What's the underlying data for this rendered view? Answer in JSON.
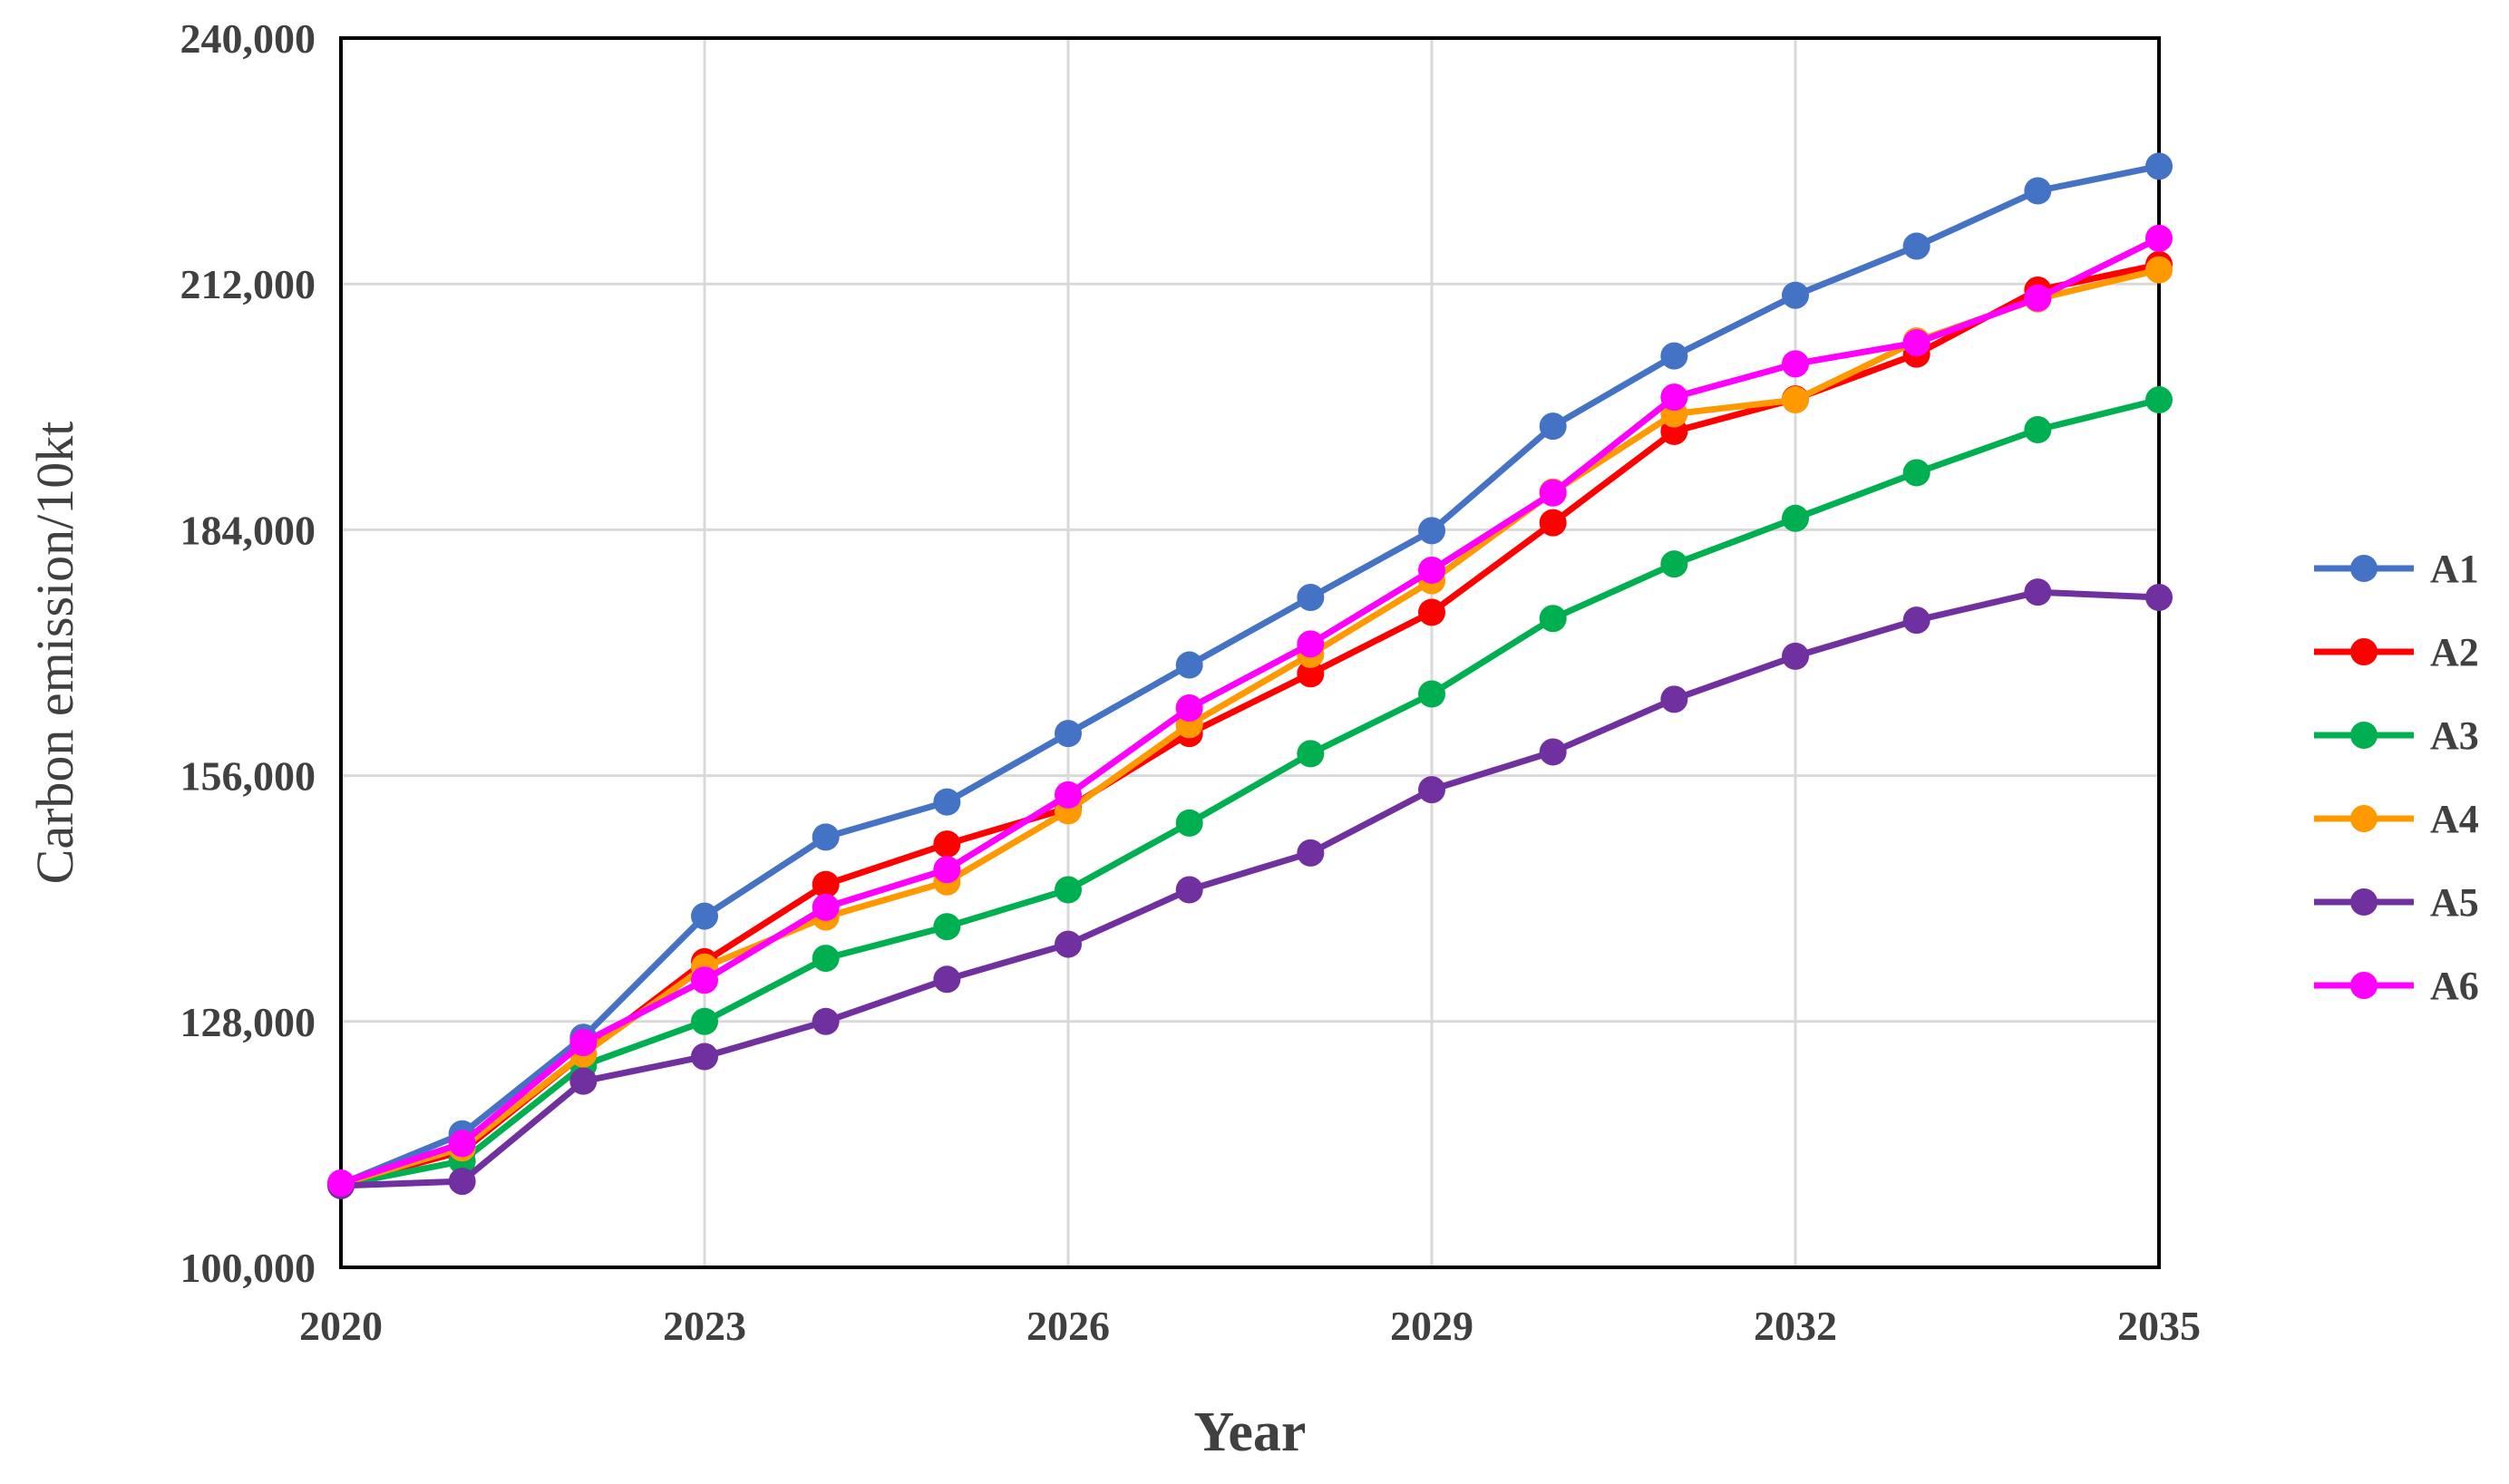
{
  "chart_data": {
    "type": "line",
    "title": "",
    "xlabel": "Year",
    "ylabel": "Carbon emission/10kt",
    "x": [
      2020,
      2021,
      2022,
      2023,
      2024,
      2025,
      2026,
      2027,
      2028,
      2029,
      2030,
      2031,
      2032,
      2033,
      2034,
      2035
    ],
    "xlim": [
      2020,
      2035
    ],
    "x_ticks": [
      "2020",
      "2023",
      "2026",
      "2029",
      "2032",
      "2035"
    ],
    "ylim": [
      100000,
      240000
    ],
    "y_ticks": [
      "100,000",
      "128,000",
      "156,000",
      "184,000",
      "212,000",
      "240,000"
    ],
    "grid": true,
    "legend_position": "right",
    "series": [
      {
        "name": "A1",
        "color": "#4472C4",
        "values": [
          109500,
          115200,
          126200,
          140000,
          149000,
          153000,
          160800,
          168600,
          176300,
          183900,
          195800,
          203800,
          210700,
          216300,
          222600,
          225400
        ]
      },
      {
        "name": "A2",
        "color": "#FF0000",
        "values": [
          109500,
          113200,
          124300,
          134800,
          143600,
          148200,
          152300,
          160800,
          167600,
          174600,
          184800,
          195200,
          198900,
          204000,
          211300,
          214200
        ]
      },
      {
        "name": "A3",
        "color": "#00B050",
        "values": [
          109400,
          112100,
          123000,
          128000,
          135200,
          138800,
          143000,
          150600,
          158500,
          165300,
          173900,
          180100,
          185300,
          190500,
          195400,
          198800
        ]
      },
      {
        "name": "A4",
        "color": "#FF9900",
        "values": [
          109500,
          113600,
          124300,
          134200,
          139900,
          143900,
          152000,
          161800,
          169800,
          178200,
          188300,
          197200,
          198800,
          205500,
          210300,
          213600
        ]
      },
      {
        "name": "A5",
        "color": "#7030A0",
        "values": [
          109300,
          109800,
          121200,
          124000,
          128000,
          132800,
          136800,
          143000,
          147200,
          154400,
          158700,
          164700,
          169600,
          173700,
          176900,
          176300
        ]
      },
      {
        "name": "A6",
        "color": "#FF00FF",
        "values": [
          109600,
          114100,
          125600,
          132700,
          141000,
          145300,
          153800,
          163700,
          171000,
          179400,
          188200,
          199100,
          202900,
          205300,
          210400,
          217200
        ]
      }
    ]
  }
}
